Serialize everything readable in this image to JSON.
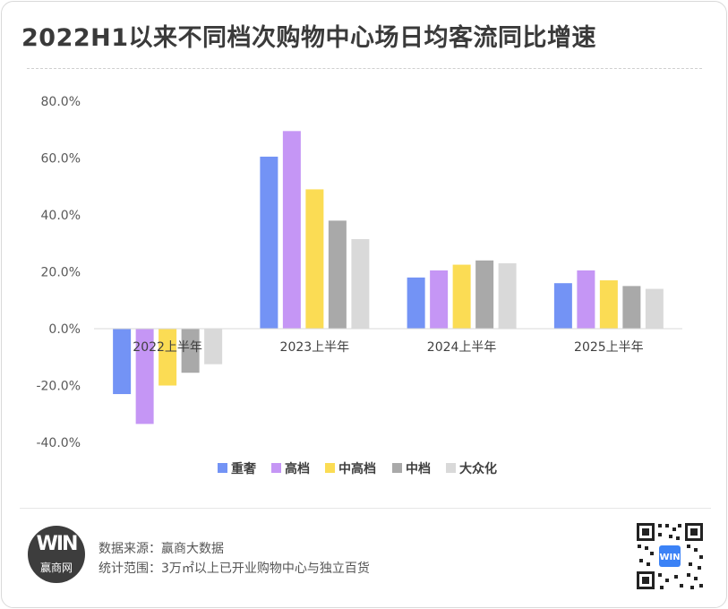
{
  "header": {
    "title": "2022H1以来不同档次购物中心场日均客流同比增速"
  },
  "footer": {
    "source": "数据来源：赢商大数据",
    "scope": "统计范围：3万㎡以上已开业购物中心与独立百货",
    "logo_text": "赢商网",
    "logo_mark": "WIN"
  },
  "chart_data": {
    "type": "bar",
    "categories": [
      "2022上半年",
      "2023上半年",
      "2024上半年",
      "2025上半年"
    ],
    "series": [
      {
        "name": "重奢",
        "color": "#7393f5",
        "values": [
          -23.0,
          60.5,
          18.0,
          16.0
        ]
      },
      {
        "name": "高档",
        "color": "#c596f5",
        "values": [
          -33.5,
          69.5,
          20.5,
          20.5
        ]
      },
      {
        "name": "中高档",
        "color": "#fbdc54",
        "values": [
          -20.0,
          49.0,
          22.5,
          17.0
        ]
      },
      {
        "name": "中档",
        "color": "#a9a9a9",
        "values": [
          -15.5,
          38.0,
          24.0,
          15.0
        ]
      },
      {
        "name": "大众化",
        "color": "#d9d9d9",
        "values": [
          -12.5,
          31.5,
          23.0,
          14.0
        ]
      }
    ],
    "y_ticks": [
      "80.0%",
      "60.0%",
      "40.0%",
      "20.0%",
      "0.0%",
      "-20.0%",
      "-40.0%"
    ],
    "ylim": [
      -40,
      80
    ],
    "unit": "%",
    "grid": false,
    "legend_position": "bottom"
  }
}
